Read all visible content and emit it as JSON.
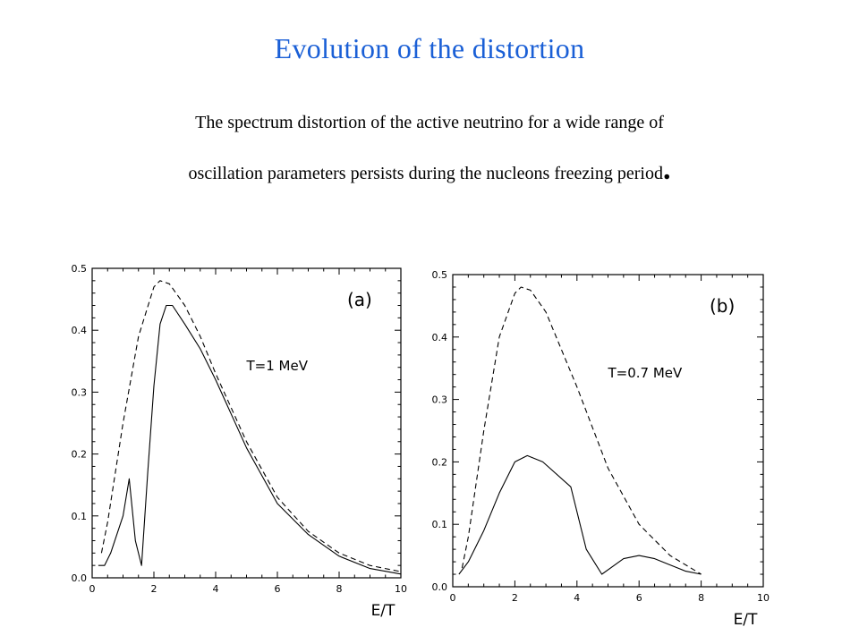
{
  "title": "Evolution of the distortion",
  "subtitle_line1": "The spectrum distortion of the active neutrino for a wide range of",
  "subtitle_line2": "oscillation parameters persists during the nucleons freezing period",
  "subtitle_period": ".",
  "colors": {
    "title": "#1a5fd6",
    "text": "#000000",
    "curves": "#000000"
  },
  "chart_data": [
    {
      "type": "line",
      "panel_label": "(a)",
      "annotation": "T=1  MeV",
      "xlabel": "E/T",
      "ylabel": "",
      "xlim": [
        0,
        10
      ],
      "ylim": [
        0,
        0.5
      ],
      "x_ticks": [
        0,
        2,
        4,
        6,
        8,
        10
      ],
      "y_ticks": [
        "0.0",
        "0.1",
        "0.2",
        "0.3",
        "0.4",
        "0.5"
      ],
      "series": [
        {
          "style": "dashed",
          "x": [
            0.3,
            0.5,
            1.0,
            1.5,
            2.0,
            2.2,
            2.5,
            3.0,
            3.5,
            4.0,
            5.0,
            6.0,
            7.0,
            8.0,
            9.0,
            10.0
          ],
          "y": [
            0.04,
            0.09,
            0.25,
            0.39,
            0.47,
            0.48,
            0.475,
            0.44,
            0.39,
            0.33,
            0.22,
            0.13,
            0.075,
            0.04,
            0.02,
            0.01
          ]
        },
        {
          "style": "solid",
          "x": [
            0.2,
            0.4,
            0.6,
            0.8,
            1.0,
            1.2,
            1.4,
            1.6,
            1.8,
            2.0,
            2.2,
            2.4,
            2.6,
            3.0,
            3.5,
            4.0,
            5.0,
            6.0,
            7.0,
            8.0,
            9.0,
            10.0
          ],
          "y": [
            0.02,
            0.02,
            0.04,
            0.07,
            0.1,
            0.16,
            0.06,
            0.02,
            0.17,
            0.31,
            0.41,
            0.44,
            0.44,
            0.41,
            0.37,
            0.32,
            0.21,
            0.12,
            0.07,
            0.035,
            0.015,
            0.006
          ]
        }
      ]
    },
    {
      "type": "line",
      "panel_label": "(b)",
      "annotation": "T=0.7  MeV",
      "xlabel": "E/T",
      "ylabel": "",
      "xlim": [
        0,
        10
      ],
      "ylim": [
        0,
        0.5
      ],
      "x_ticks": [
        0,
        2,
        4,
        6,
        8,
        10
      ],
      "y_ticks": [
        "0.0",
        "0.1",
        "0.2",
        "0.3",
        "0.4",
        "0.5"
      ],
      "series": [
        {
          "style": "dashed",
          "x": [
            0.3,
            0.5,
            1.0,
            1.5,
            2.0,
            2.2,
            2.5,
            3.0,
            3.5,
            4.0,
            5.0,
            6.0,
            7.0,
            8.0
          ],
          "y": [
            0.03,
            0.08,
            0.25,
            0.4,
            0.47,
            0.48,
            0.475,
            0.44,
            0.38,
            0.32,
            0.19,
            0.1,
            0.05,
            0.02
          ]
        },
        {
          "style": "solid",
          "x": [
            0.2,
            0.5,
            1.0,
            1.5,
            2.0,
            2.4,
            2.9,
            3.8,
            4.3,
            4.8,
            5.5,
            6.0,
            6.5,
            7.0,
            7.5,
            8.0
          ],
          "y": [
            0.02,
            0.04,
            0.09,
            0.15,
            0.2,
            0.21,
            0.2,
            0.16,
            0.06,
            0.02,
            0.045,
            0.05,
            0.045,
            0.035,
            0.025,
            0.02
          ]
        }
      ]
    }
  ]
}
